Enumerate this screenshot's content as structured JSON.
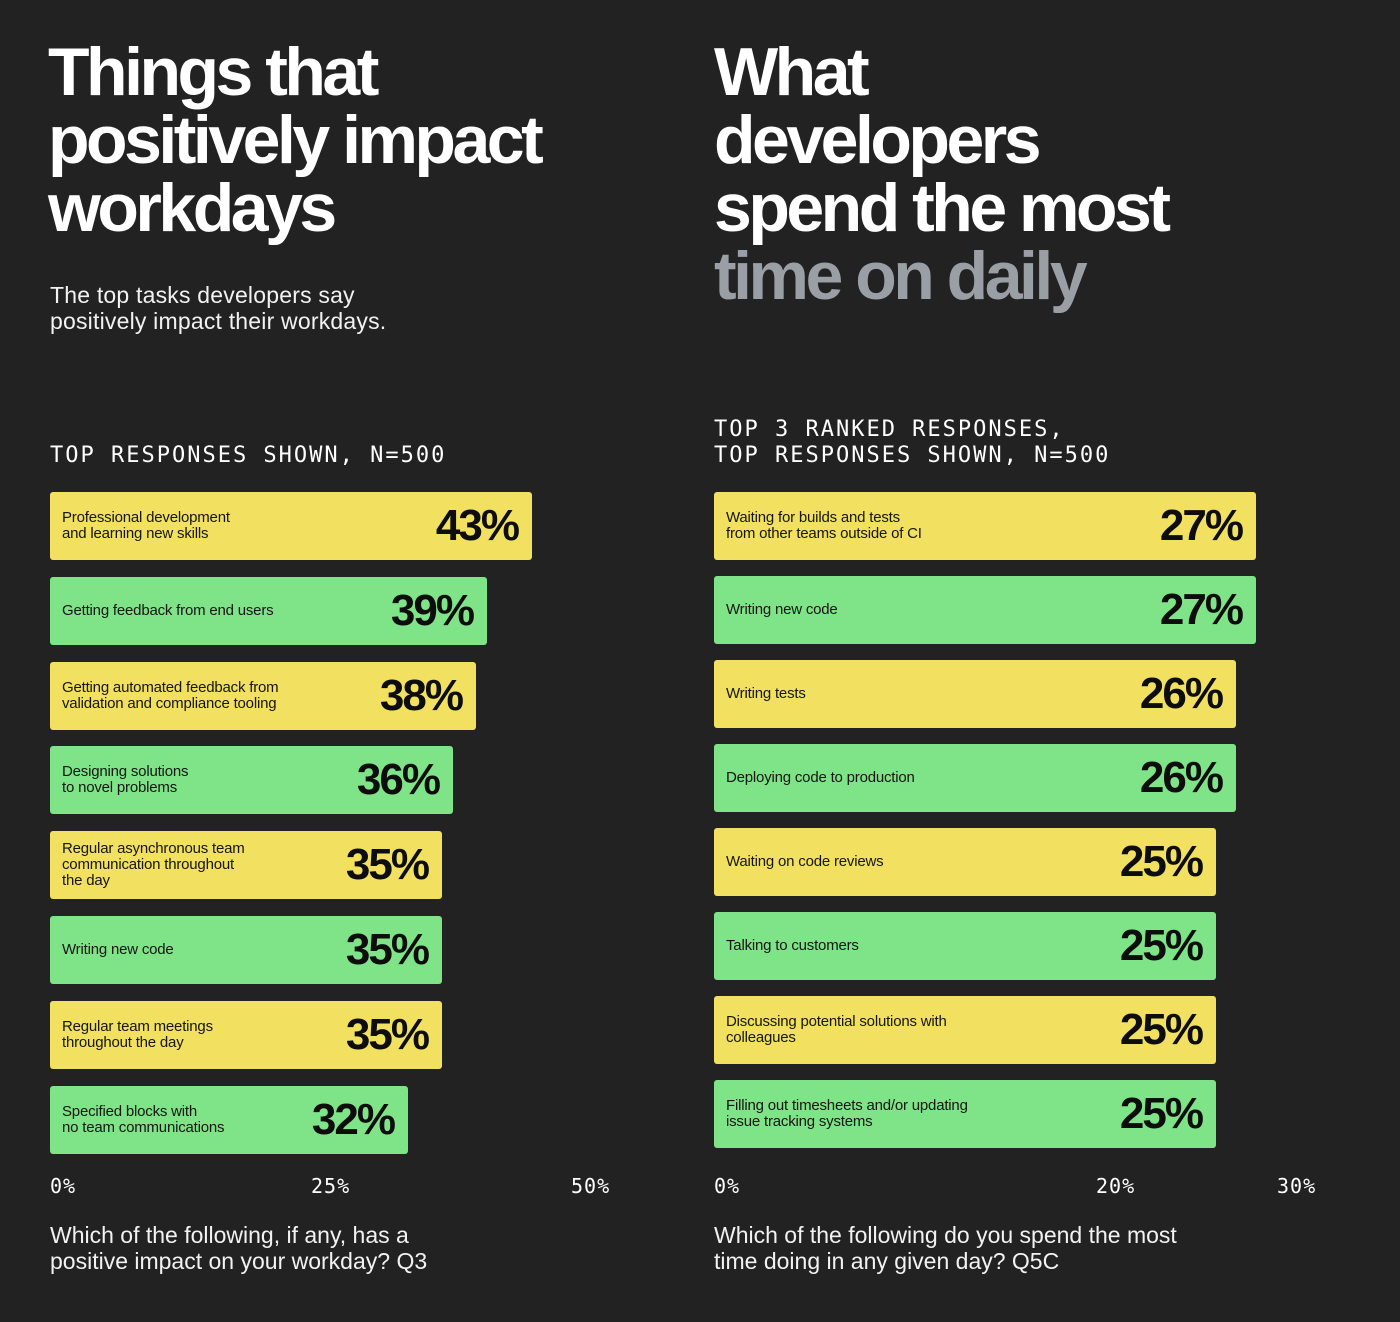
{
  "left": {
    "title_lines": [
      "Things that",
      "positively impact",
      "workdays"
    ],
    "subtitle_lines": [
      "The top tasks developers say",
      "positively impact their workdays."
    ],
    "note_lines": [
      "TOP RESPONSES SHOWN, N=500"
    ],
    "question_lines": [
      "Which of the following, if any, has a",
      "positive impact on your workday? Q3"
    ]
  },
  "right": {
    "title_lines": [
      "What",
      "developers",
      "spend the most"
    ],
    "title_muted_line": "time on daily",
    "note_lines": [
      "TOP 3 RANKED RESPONSES,",
      "TOP RESPONSES SHOWN, N=500"
    ],
    "question_lines": [
      "Which of the following do you spend the most",
      "time doing in any given day? Q5C"
    ]
  },
  "colors": {
    "background": "#222222",
    "yellow": "#f2e060",
    "green": "#7fe387",
    "muted_title": "#9a9fa6"
  },
  "chart_data": [
    {
      "type": "bar",
      "orientation": "horizontal",
      "xlim": [
        0,
        50
      ],
      "ticks": [
        "0%",
        "25%",
        "50%"
      ],
      "tick_values": [
        0,
        25,
        50
      ],
      "bars": [
        {
          "label_lines": [
            "Professional development",
            "and learning new skills"
          ],
          "value": 43,
          "value_label": "43%",
          "color": "yellow"
        },
        {
          "label_lines": [
            "Getting feedback from end users"
          ],
          "value": 39,
          "value_label": "39%",
          "color": "green"
        },
        {
          "label_lines": [
            "Getting automated feedback from",
            "validation and compliance tooling"
          ],
          "value": 38,
          "value_label": "38%",
          "color": "yellow"
        },
        {
          "label_lines": [
            "Designing solutions",
            "to novel problems"
          ],
          "value": 36,
          "value_label": "36%",
          "color": "green"
        },
        {
          "label_lines": [
            "Regular asynchronous team",
            "communication throughout",
            "the day"
          ],
          "value": 35,
          "value_label": "35%",
          "color": "yellow"
        },
        {
          "label_lines": [
            "Writing new code"
          ],
          "value": 35,
          "value_label": "35%",
          "color": "green"
        },
        {
          "label_lines": [
            "Regular team meetings",
            "throughout the day"
          ],
          "value": 35,
          "value_label": "35%",
          "color": "yellow"
        },
        {
          "label_lines": [
            "Specified blocks with",
            "no team communications"
          ],
          "value": 32,
          "value_label": "32%",
          "color": "green"
        }
      ]
    },
    {
      "type": "bar",
      "orientation": "horizontal",
      "xlim": [
        0,
        30
      ],
      "ticks": [
        "0%",
        "20%",
        "30%"
      ],
      "tick_values": [
        0,
        20,
        30
      ],
      "bars": [
        {
          "label_lines": [
            "Waiting for builds and tests",
            "from other teams outside of CI"
          ],
          "value": 27,
          "value_label": "27%",
          "color": "yellow"
        },
        {
          "label_lines": [
            "Writing new code"
          ],
          "value": 27,
          "value_label": "27%",
          "color": "green"
        },
        {
          "label_lines": [
            "Writing tests"
          ],
          "value": 26,
          "value_label": "26%",
          "color": "yellow"
        },
        {
          "label_lines": [
            "Deploying code to production"
          ],
          "value": 26,
          "value_label": "26%",
          "color": "green"
        },
        {
          "label_lines": [
            "Waiting on code reviews"
          ],
          "value": 25,
          "value_label": "25%",
          "color": "yellow"
        },
        {
          "label_lines": [
            "Talking to customers"
          ],
          "value": 25,
          "value_label": "25%",
          "color": "green"
        },
        {
          "label_lines": [
            "Discussing potential solutions with",
            "colleagues"
          ],
          "value": 25,
          "value_label": "25%",
          "color": "yellow"
        },
        {
          "label_lines": [
            "Filling out timesheets and/or updating",
            "issue tracking systems"
          ],
          "value": 25,
          "value_label": "25%",
          "color": "green"
        }
      ]
    }
  ]
}
